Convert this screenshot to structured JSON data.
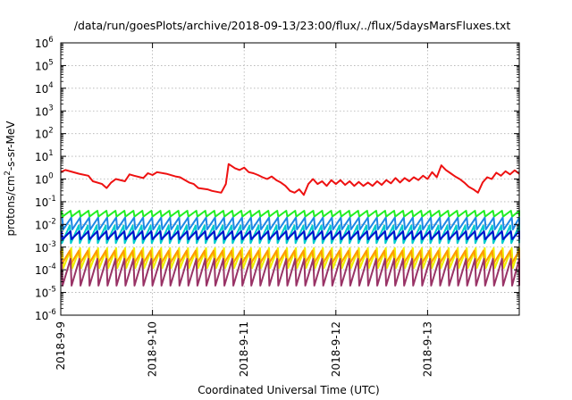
{
  "chart_data": {
    "type": "line",
    "title": "/data/run/goesPlots/archive/2018-09-13/23:00/flux/../flux/5daysMarsFluxes.txt",
    "xlabel": "Coordinated Universal Time (UTC)",
    "ylabel_main": "protons/cm",
    "ylabel_sup": "2",
    "ylabel_tail": "-s-sr-MeV",
    "x_range_days": [
      0,
      5
    ],
    "x_ticks": [
      {
        "day": 0,
        "label": "2018-9-9"
      },
      {
        "day": 1,
        "label": "2018-9-10"
      },
      {
        "day": 2,
        "label": "2018-9-11"
      },
      {
        "day": 3,
        "label": "2018-9-12"
      },
      {
        "day": 4,
        "label": "2018-9-13"
      }
    ],
    "y_scale": "log",
    "y_range_exponent": [
      -6,
      6
    ],
    "y_ticks": [
      {
        "exp": -6,
        "base": "10",
        "sup": "-6"
      },
      {
        "exp": -5,
        "base": "10",
        "sup": "-5"
      },
      {
        "exp": -4,
        "base": "10",
        "sup": "-4"
      },
      {
        "exp": -3,
        "base": "10",
        "sup": "-3"
      },
      {
        "exp": -2,
        "base": "10",
        "sup": "-2"
      },
      {
        "exp": -1,
        "base": "10",
        "sup": "-1"
      },
      {
        "exp": 0,
        "base": "10",
        "sup": "0"
      },
      {
        "exp": 1,
        "base": "10",
        "sup": "1"
      },
      {
        "exp": 2,
        "base": "10",
        "sup": "2"
      },
      {
        "exp": 3,
        "base": "10",
        "sup": "3"
      },
      {
        "exp": 4,
        "base": "10",
        "sup": "4"
      },
      {
        "exp": 5,
        "base": "10",
        "sup": "5"
      },
      {
        "exp": 6,
        "base": "10",
        "sup": "6"
      }
    ],
    "grid": true,
    "series": [
      {
        "color": "#ee1111",
        "style": "smooth",
        "points": [
          [
            0.0,
            2.0
          ],
          [
            0.05,
            2.5
          ],
          [
            0.2,
            1.7
          ],
          [
            0.3,
            1.4
          ],
          [
            0.35,
            0.8
          ],
          [
            0.45,
            0.6
          ],
          [
            0.5,
            0.4
          ],
          [
            0.55,
            0.7
          ],
          [
            0.6,
            1.0
          ],
          [
            0.7,
            0.8
          ],
          [
            0.75,
            1.6
          ],
          [
            0.8,
            1.4
          ],
          [
            0.9,
            1.1
          ],
          [
            0.95,
            1.8
          ],
          [
            1.0,
            1.5
          ],
          [
            1.05,
            2.0
          ],
          [
            1.15,
            1.7
          ],
          [
            1.25,
            1.3
          ],
          [
            1.3,
            1.2
          ],
          [
            1.4,
            0.7
          ],
          [
            1.45,
            0.6
          ],
          [
            1.5,
            0.4
          ],
          [
            1.6,
            0.35
          ],
          [
            1.65,
            0.3
          ],
          [
            1.75,
            0.25
          ],
          [
            1.8,
            0.6
          ],
          [
            1.83,
            4.6
          ],
          [
            1.9,
            3.0
          ],
          [
            1.95,
            2.5
          ],
          [
            2.0,
            3.2
          ],
          [
            2.05,
            2.0
          ],
          [
            2.1,
            1.8
          ],
          [
            2.15,
            1.5
          ],
          [
            2.2,
            1.2
          ],
          [
            2.25,
            1.0
          ],
          [
            2.3,
            1.3
          ],
          [
            2.35,
            0.9
          ],
          [
            2.4,
            0.7
          ],
          [
            2.45,
            0.5
          ],
          [
            2.5,
            0.3
          ],
          [
            2.55,
            0.25
          ],
          [
            2.6,
            0.35
          ],
          [
            2.65,
            0.2
          ],
          [
            2.7,
            0.6
          ],
          [
            2.75,
            1.0
          ],
          [
            2.8,
            0.6
          ],
          [
            2.85,
            0.8
          ],
          [
            2.9,
            0.5
          ],
          [
            2.95,
            0.9
          ],
          [
            3.0,
            0.6
          ],
          [
            3.05,
            0.9
          ],
          [
            3.1,
            0.55
          ],
          [
            3.15,
            0.8
          ],
          [
            3.2,
            0.5
          ],
          [
            3.25,
            0.75
          ],
          [
            3.3,
            0.5
          ],
          [
            3.35,
            0.7
          ],
          [
            3.4,
            0.5
          ],
          [
            3.45,
            0.8
          ],
          [
            3.5,
            0.55
          ],
          [
            3.55,
            0.9
          ],
          [
            3.6,
            0.65
          ],
          [
            3.65,
            1.1
          ],
          [
            3.7,
            0.7
          ],
          [
            3.75,
            1.1
          ],
          [
            3.8,
            0.8
          ],
          [
            3.85,
            1.2
          ],
          [
            3.9,
            0.9
          ],
          [
            3.95,
            1.4
          ],
          [
            4.0,
            1.0
          ],
          [
            4.05,
            2.0
          ],
          [
            4.1,
            1.2
          ],
          [
            4.15,
            4.0
          ],
          [
            4.2,
            2.5
          ],
          [
            4.25,
            1.8
          ],
          [
            4.3,
            1.3
          ],
          [
            4.35,
            1.0
          ],
          [
            4.4,
            0.7
          ],
          [
            4.45,
            0.45
          ],
          [
            4.5,
            0.35
          ],
          [
            4.55,
            0.25
          ],
          [
            4.6,
            0.7
          ],
          [
            4.65,
            1.2
          ],
          [
            4.7,
            1.0
          ],
          [
            4.75,
            1.9
          ],
          [
            4.8,
            1.4
          ],
          [
            4.85,
            2.2
          ],
          [
            4.9,
            1.6
          ],
          [
            4.95,
            2.4
          ],
          [
            5.0,
            1.7
          ]
        ]
      },
      {
        "color": "#22ee22",
        "style": "sawtooth",
        "peak": 0.04,
        "trough": 0.022
      },
      {
        "color": "#1e88e5",
        "style": "sawtooth",
        "peak": 0.02,
        "trough": 0.006
      },
      {
        "color": "#00cccc",
        "style": "sawtooth",
        "peak": 0.009,
        "trough": 0.0015
      },
      {
        "color": "#0011cc",
        "style": "sawtooth",
        "peak": 0.005,
        "trough": 0.0022
      },
      {
        "color": "#eeee00",
        "style": "sawtooth",
        "peak": 0.0009,
        "trough": 0.00012
      },
      {
        "color": "#ff9900",
        "style": "sawtooth",
        "peak": 0.0007,
        "trough": 0.00018
      },
      {
        "color": "#993366",
        "style": "sawtooth",
        "peak": 0.0003,
        "trough": 2e-05
      }
    ],
    "sawtooth_cycles": 51
  }
}
